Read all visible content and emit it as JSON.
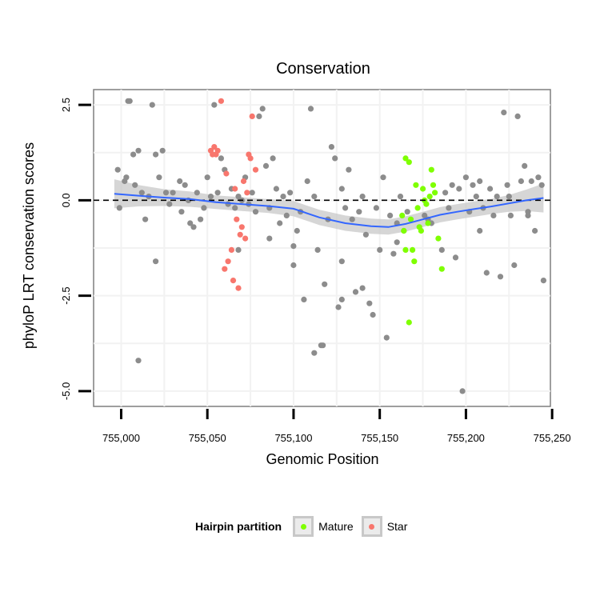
{
  "chart_data": {
    "type": "scatter",
    "title": "Conservation",
    "xlabel": "Genomic Position",
    "ylabel": "phyloP LRT conservation scores",
    "xlim": [
      754984,
      755249
    ],
    "ylim": [
      -5.4,
      2.9
    ],
    "xticks": [
      755000,
      755050,
      755100,
      755150,
      755200,
      755250
    ],
    "xtick_labels": [
      "755,000",
      "755,050",
      "755,100",
      "755,150",
      "755,200",
      "755,250"
    ],
    "yticks": [
      2.5,
      0,
      -2.5,
      -5
    ],
    "ytick_labels": [
      "2.5",
      "0.0",
      "-2.5",
      "-5.0"
    ],
    "hline": 0,
    "legend": {
      "title": "Hairpin partition",
      "position": "bottom",
      "entries": [
        {
          "label": "Mature",
          "color": "#7fff00"
        },
        {
          "label": "Star",
          "color": "#f8766d"
        }
      ]
    },
    "colors": {
      "other": "#8c8c8c",
      "Mature": "#7fff00",
      "Star": "#f8766d",
      "smooth": "#3366ff",
      "ribbon": "#c8c8c8"
    },
    "series": [
      {
        "name": "Other",
        "points": [
          [
            754998,
            0.8
          ],
          [
            754999,
            -0.2
          ],
          [
            755002,
            0.5
          ],
          [
            755003,
            0.6
          ],
          [
            755004,
            2.6
          ],
          [
            755005,
            2.6
          ],
          [
            755007,
            1.2
          ],
          [
            755008,
            0.4
          ],
          [
            755010,
            1.3
          ],
          [
            755012,
            0.2
          ],
          [
            755014,
            -0.5
          ],
          [
            755016,
            0.1
          ],
          [
            755018,
            2.5
          ],
          [
            755020,
            1.2
          ],
          [
            755022,
            0.6
          ],
          [
            755024,
            1.3
          ],
          [
            755026,
            0.2
          ],
          [
            755028,
            -0.1
          ],
          [
            755030,
            0.2
          ],
          [
            755034,
            0.5
          ],
          [
            755035,
            -0.3
          ],
          [
            755037,
            0.4
          ],
          [
            755039,
            0.0
          ],
          [
            755040,
            -0.6
          ],
          [
            755042,
            -0.7
          ],
          [
            755044,
            0.2
          ],
          [
            755046,
            -0.5
          ],
          [
            755048,
            -0.2
          ],
          [
            755050,
            0.6
          ],
          [
            755052,
            0.1
          ],
          [
            755054,
            2.5
          ],
          [
            755056,
            0.2
          ],
          [
            755058,
            1.1
          ],
          [
            755060,
            0.8
          ],
          [
            755062,
            -0.1
          ],
          [
            755064,
            0.3
          ],
          [
            755066,
            -0.2
          ],
          [
            755068,
            0.1
          ],
          [
            755070,
            0.0
          ],
          [
            755072,
            0.6
          ],
          [
            755074,
            -0.1
          ],
          [
            755076,
            0.2
          ],
          [
            755078,
            -0.3
          ],
          [
            755080,
            2.2
          ],
          [
            755082,
            2.4
          ],
          [
            755084,
            0.9
          ],
          [
            755086,
            -0.2
          ],
          [
            755088,
            1.1
          ],
          [
            755090,
            0.3
          ],
          [
            755092,
            -0.6
          ],
          [
            755094,
            0.1
          ],
          [
            755096,
            -0.4
          ],
          [
            755098,
            0.2
          ],
          [
            755100,
            -1.2
          ],
          [
            755102,
            -0.8
          ],
          [
            755104,
            -0.3
          ],
          [
            755106,
            -2.6
          ],
          [
            755108,
            0.5
          ],
          [
            755110,
            2.4
          ],
          [
            755112,
            0.1
          ],
          [
            755114,
            -1.3
          ],
          [
            755116,
            -3.8
          ],
          [
            755118,
            -2.2
          ],
          [
            755120,
            -0.5
          ],
          [
            755122,
            1.4
          ],
          [
            755124,
            1.1
          ],
          [
            755126,
            -2.8
          ],
          [
            755128,
            0.3
          ],
          [
            755130,
            -0.2
          ],
          [
            755132,
            0.8
          ],
          [
            755134,
            -0.5
          ],
          [
            755136,
            -2.4
          ],
          [
            755138,
            -0.3
          ],
          [
            755140,
            0.1
          ],
          [
            755142,
            -0.9
          ],
          [
            755144,
            -2.7
          ],
          [
            755146,
            -3.0
          ],
          [
            755148,
            -0.2
          ],
          [
            755150,
            -1.3
          ],
          [
            755152,
            0.6
          ],
          [
            755154,
            -3.6
          ],
          [
            755156,
            -0.4
          ],
          [
            755158,
            -1.4
          ],
          [
            755160,
            -0.6
          ],
          [
            755162,
            0.1
          ],
          [
            755164,
            -0.8
          ],
          [
            755166,
            -0.3
          ],
          [
            755176,
            -0.4
          ],
          [
            755178,
            -0.5
          ],
          [
            755186,
            -1.3
          ],
          [
            755188,
            0.2
          ],
          [
            755190,
            -0.2
          ],
          [
            755192,
            0.4
          ],
          [
            755194,
            -1.5
          ],
          [
            755196,
            0.3
          ],
          [
            755198,
            -5.0
          ],
          [
            755200,
            0.6
          ],
          [
            755202,
            -0.3
          ],
          [
            755204,
            0.4
          ],
          [
            755206,
            0.1
          ],
          [
            755208,
            0.5
          ],
          [
            755210,
            -0.2
          ],
          [
            755212,
            -1.9
          ],
          [
            755214,
            0.3
          ],
          [
            755216,
            -0.4
          ],
          [
            755218,
            0.1
          ],
          [
            755220,
            -2.0
          ],
          [
            755222,
            2.3
          ],
          [
            755224,
            0.4
          ],
          [
            755226,
            -0.4
          ],
          [
            755228,
            -1.7
          ],
          [
            755230,
            2.2
          ],
          [
            755232,
            0.5
          ],
          [
            755234,
            0.9
          ],
          [
            755236,
            -0.4
          ],
          [
            755238,
            0.5
          ],
          [
            755240,
            -0.8
          ],
          [
            755242,
            0.6
          ],
          [
            755244,
            0.4
          ],
          [
            755245,
            -2.1
          ],
          [
            755010,
            -4.2
          ],
          [
            755020,
            -1.6
          ],
          [
            755112,
            -4.0
          ],
          [
            755117,
            -3.8
          ],
          [
            755128,
            -1.6
          ],
          [
            755140,
            -2.3
          ],
          [
            755068,
            -1.3
          ],
          [
            755086,
            -1.0
          ],
          [
            755100,
            -1.7
          ],
          [
            755180,
            -0.6
          ],
          [
            755160,
            -1.1
          ],
          [
            755208,
            -0.8
          ],
          [
            755225,
            0.1
          ],
          [
            755236,
            -0.3
          ],
          [
            755128,
            -2.6
          ]
        ]
      },
      {
        "name": "Mature",
        "points": [
          [
            755163,
            -0.4
          ],
          [
            755164,
            -0.8
          ],
          [
            755165,
            1.1
          ],
          [
            755167,
            1.0
          ],
          [
            755168,
            -0.5
          ],
          [
            755169,
            -1.3
          ],
          [
            755170,
            -1.6
          ],
          [
            755171,
            0.4
          ],
          [
            755172,
            -0.2
          ],
          [
            755173,
            -0.7
          ],
          [
            755174,
            -0.8
          ],
          [
            755175,
            0.3
          ],
          [
            755176,
            0.0
          ],
          [
            755177,
            -0.1
          ],
          [
            755178,
            -0.6
          ],
          [
            755179,
            0.1
          ],
          [
            755180,
            0.8
          ],
          [
            755181,
            0.4
          ],
          [
            755182,
            0.2
          ],
          [
            755184,
            -1.0
          ],
          [
            755186,
            -1.8
          ],
          [
            755167,
            -3.2
          ],
          [
            755165,
            -1.3
          ]
        ]
      },
      {
        "name": "Star",
        "points": [
          [
            755052,
            1.3
          ],
          [
            755053,
            1.2
          ],
          [
            755054,
            1.4
          ],
          [
            755055,
            1.2
          ],
          [
            755056,
            1.3
          ],
          [
            755058,
            2.6
          ],
          [
            755060,
            -1.8
          ],
          [
            755061,
            0.7
          ],
          [
            755062,
            -1.6
          ],
          [
            755064,
            -1.3
          ],
          [
            755065,
            -2.1
          ],
          [
            755066,
            0.3
          ],
          [
            755067,
            -0.5
          ],
          [
            755068,
            -2.3
          ],
          [
            755069,
            -0.9
          ],
          [
            755070,
            -0.7
          ],
          [
            755071,
            0.5
          ],
          [
            755072,
            -1.0
          ],
          [
            755073,
            0.2
          ],
          [
            755074,
            1.2
          ],
          [
            755075,
            1.1
          ],
          [
            755076,
            2.2
          ],
          [
            755078,
            0.8
          ]
        ]
      }
    ],
    "smooth": {
      "x": [
        754996,
        755010,
        755025,
        755040,
        755055,
        755070,
        755085,
        755100,
        755115,
        755130,
        755145,
        755155,
        755165,
        755175,
        755185,
        755195,
        755205,
        755215,
        755225,
        755235,
        755245
      ],
      "y": [
        0.17,
        0.12,
        0.07,
        0.03,
        -0.05,
        -0.1,
        -0.15,
        -0.22,
        -0.45,
        -0.6,
        -0.68,
        -0.7,
        -0.62,
        -0.5,
        -0.38,
        -0.3,
        -0.23,
        -0.16,
        -0.08,
        0.0,
        0.06
      ],
      "se": [
        0.38,
        0.28,
        0.22,
        0.2,
        0.18,
        0.18,
        0.18,
        0.2,
        0.2,
        0.2,
        0.2,
        0.2,
        0.2,
        0.2,
        0.2,
        0.2,
        0.2,
        0.2,
        0.22,
        0.28,
        0.38
      ]
    }
  }
}
